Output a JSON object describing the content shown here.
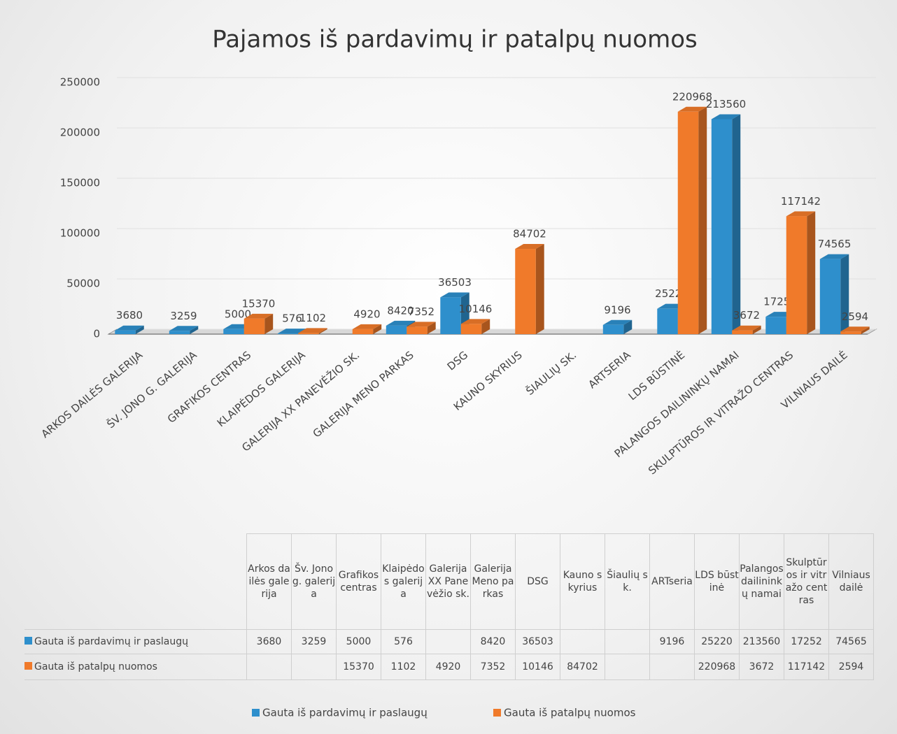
{
  "chart_data": {
    "type": "bar3d",
    "title": "Pajamos iš pardavimų ir patalpų nuomos",
    "categories": [
      "ARKOS DAILĖS GALERIJA",
      "ŠV. JONO G. GALERIJA",
      "GRAFIKOS CENTRAS",
      "KLAIPĖDOS GALERIJA",
      "GALERIJA XX PANEVĖŽIO SK.",
      "GALERIJA MENO PARKAS",
      "DSG",
      "KAUNO SKYRIUS",
      "ŠIAULIŲ SK.",
      "ARTSERIA",
      "LDS BŪSTINĖ",
      "PALANGOS DAILININKŲ NAMAI",
      "SKULPTŪROS IR VITRAŽO CENTRAS",
      "VILNIAUS DAILĖ"
    ],
    "table_headers": [
      "Arkos dailės galerija",
      "Šv. Jono g. galerija",
      "Grafikos centras",
      "Klaipėdos galerija",
      "Galerija XX Panevėžio sk.",
      "Galerija Meno parkas",
      "DSG",
      "Kauno skyrius",
      "Šiaulių sk.",
      "ARTseria",
      "LDS būstinė",
      "Palangos dailininkų namai",
      "Skulptūros ir vitražo centras",
      "Vilniaus dailė"
    ],
    "series": [
      {
        "name": "Gauta iš pardavimų ir paslaugų",
        "color": "#2e8fcc",
        "values": [
          3680,
          3259,
          5000,
          576,
          null,
          8420,
          36503,
          null,
          null,
          9196,
          25220,
          213560,
          17252,
          74565
        ]
      },
      {
        "name": "Gauta iš patalpų nuomos",
        "color": "#f07a2a",
        "values": [
          null,
          null,
          15370,
          1102,
          4920,
          7352,
          10146,
          84702,
          null,
          null,
          220968,
          3672,
          117142,
          2594
        ]
      }
    ],
    "ylim": [
      0,
      250000
    ],
    "yticks": [
      0,
      50000,
      100000,
      150000,
      200000,
      250000
    ],
    "grid": true,
    "legend": "bottom"
  }
}
